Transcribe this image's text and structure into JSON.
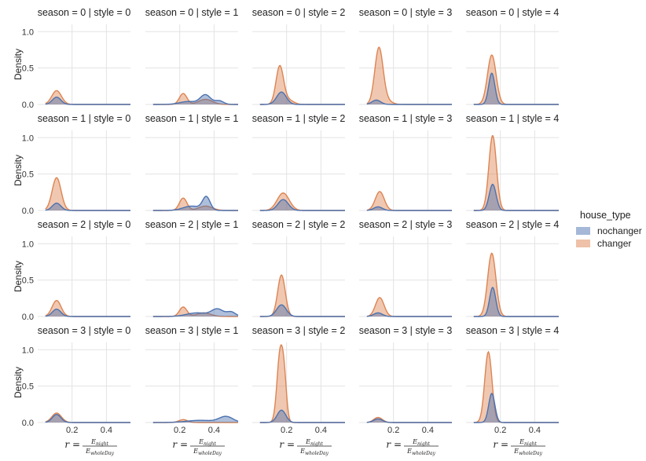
{
  "chart_data": {
    "type": "area",
    "kind": "kde-facet-grid",
    "row_var": "season",
    "col_var": "style",
    "rows": [
      0,
      1,
      2,
      3
    ],
    "cols": [
      0,
      1,
      2,
      3,
      4
    ],
    "facet_title_template": "season = {r} | style = {c}",
    "facet_titles": [
      [
        "season = 0 | style = 0",
        "season = 0 | style = 1",
        "season = 0 | style = 2",
        "season = 0 | style = 3",
        "season = 0 | style = 4"
      ],
      [
        "season = 1 | style = 0",
        "season = 1 | style = 1",
        "season = 1 | style = 2",
        "season = 1 | style = 3",
        "season = 1 | style = 4"
      ],
      [
        "season = 2 | style = 0",
        "season = 2 | style = 1",
        "season = 2 | style = 2",
        "season = 2 | style = 3",
        "season = 2 | style = 4"
      ],
      [
        "season = 3 | style = 0",
        "season = 3 | style = 1",
        "season = 3 | style = 2",
        "season = 3 | style = 3",
        "season = 3 | style = 4"
      ]
    ],
    "xlim": [
      0.0,
      0.54
    ],
    "ylim": [
      0,
      1.1
    ],
    "xticks": [
      0.2,
      0.4
    ],
    "xtick_labels": [
      "0.2",
      "0.4"
    ],
    "yticks": [
      0.0,
      0.5,
      1.0
    ],
    "ytick_labels": [
      "0.0",
      "0.5",
      "1.0"
    ],
    "ylabel": "Density",
    "xlabel": {
      "prefix": "r =",
      "numerator_var": "E",
      "numerator_sub": "night",
      "denominator_var": "E",
      "denominator_sub": "wholeDay"
    },
    "legend": {
      "title": "house_type",
      "position": "right",
      "entries": [
        {
          "name": "nochanger",
          "color": "#4c72b0"
        },
        {
          "name": "changer",
          "color": "#dd8452"
        }
      ]
    },
    "series_colors": {
      "nochanger": "#4c72b0",
      "changer": "#dd8452"
    },
    "grid": true,
    "peaks": [
      [
        {
          "changer": [
            [
              0.11,
              0.19,
              0.028
            ]
          ],
          "nochanger": [
            [
              0.11,
              0.1,
              0.025
            ]
          ]
        },
        {
          "changer": [
            [
              0.22,
              0.15,
              0.022
            ],
            [
              0.35,
              0.07,
              0.04
            ]
          ],
          "nochanger": [
            [
              0.25,
              0.04,
              0.05
            ],
            [
              0.35,
              0.13,
              0.03
            ],
            [
              0.43,
              0.05,
              0.025
            ]
          ]
        },
        {
          "changer": [
            [
              0.16,
              0.52,
              0.022
            ],
            [
              0.21,
              0.06,
              0.03
            ]
          ],
          "nochanger": [
            [
              0.17,
              0.17,
              0.028
            ]
          ]
        },
        {
          "changer": [
            [
              0.115,
              0.77,
              0.024
            ],
            [
              0.16,
              0.05,
              0.03
            ]
          ],
          "nochanger": [
            [
              0.1,
              0.06,
              0.025
            ]
          ]
        },
        {
          "changer": [
            [
              0.15,
              0.68,
              0.025
            ]
          ],
          "nochanger": [
            [
              0.15,
              0.43,
              0.018
            ]
          ]
        }
      ],
      [
        {
          "changer": [
            [
              0.11,
              0.45,
              0.026
            ]
          ],
          "nochanger": [
            [
              0.11,
              0.1,
              0.025
            ]
          ]
        },
        {
          "changer": [
            [
              0.22,
              0.17,
              0.022
            ],
            [
              0.35,
              0.06,
              0.04
            ]
          ],
          "nochanger": [
            [
              0.27,
              0.06,
              0.05
            ],
            [
              0.355,
              0.18,
              0.022
            ]
          ]
        },
        {
          "changer": [
            [
              0.18,
              0.24,
              0.035
            ]
          ],
          "nochanger": [
            [
              0.18,
              0.15,
              0.03
            ]
          ]
        },
        {
          "changer": [
            [
              0.12,
              0.26,
              0.026
            ]
          ],
          "nochanger": [
            [
              0.11,
              0.05,
              0.025
            ]
          ]
        },
        {
          "changer": [
            [
              0.155,
              1.03,
              0.022
            ]
          ],
          "nochanger": [
            [
              0.155,
              0.36,
              0.02
            ]
          ]
        }
      ],
      [
        {
          "changer": [
            [
              0.11,
              0.22,
              0.026
            ]
          ],
          "nochanger": [
            [
              0.11,
              0.1,
              0.025
            ]
          ]
        },
        {
          "changer": [
            [
              0.22,
              0.13,
              0.022
            ],
            [
              0.34,
              0.05,
              0.04
            ]
          ],
          "nochanger": [
            [
              0.3,
              0.05,
              0.06
            ],
            [
              0.42,
              0.1,
              0.035
            ],
            [
              0.5,
              0.06,
              0.025
            ]
          ]
        },
        {
          "changer": [
            [
              0.17,
              0.57,
              0.022
            ]
          ],
          "nochanger": [
            [
              0.17,
              0.16,
              0.028
            ]
          ]
        },
        {
          "changer": [
            [
              0.12,
              0.26,
              0.025
            ]
          ],
          "nochanger": [
            [
              0.11,
              0.05,
              0.025
            ]
          ]
        },
        {
          "changer": [
            [
              0.15,
              0.87,
              0.024
            ]
          ],
          "nochanger": [
            [
              0.155,
              0.4,
              0.018
            ]
          ]
        }
      ],
      [
        {
          "changer": [
            [
              0.11,
              0.13,
              0.028
            ]
          ],
          "nochanger": [
            [
              0.11,
              0.11,
              0.025
            ]
          ]
        },
        {
          "changer": [
            [
              0.22,
              0.04,
              0.025
            ]
          ],
          "nochanger": [
            [
              0.32,
              0.03,
              0.08
            ],
            [
              0.47,
              0.08,
              0.04
            ]
          ]
        },
        {
          "changer": [
            [
              0.162,
              0.94,
              0.018
            ],
            [
              0.187,
              0.45,
              0.014
            ]
          ],
          "nochanger": [
            [
              0.17,
              0.17,
              0.025
            ]
          ]
        },
        {
          "changer": [
            [
              0.11,
              0.07,
              0.025
            ]
          ],
          "nochanger": [
            [
              0.11,
              0.05,
              0.025
            ]
          ]
        },
        {
          "changer": [
            [
              0.13,
              0.97,
              0.021
            ]
          ],
          "nochanger": [
            [
              0.15,
              0.4,
              0.018
            ]
          ]
        }
      ]
    ]
  }
}
